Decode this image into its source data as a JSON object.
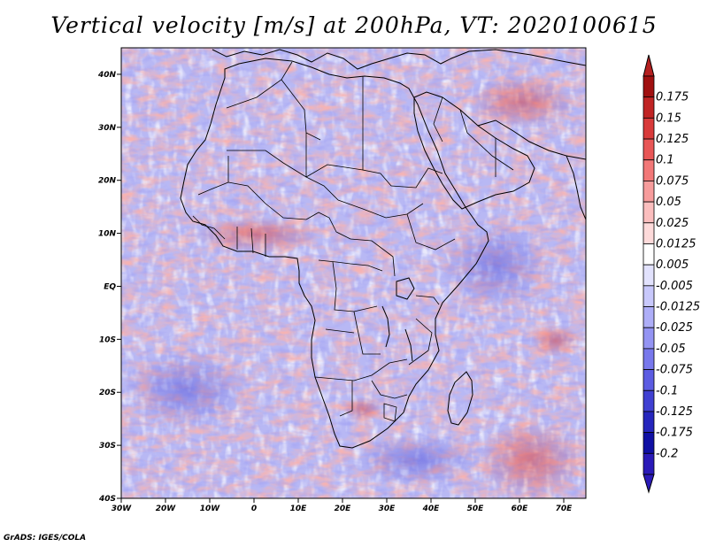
{
  "title": "Vertical velocity [m/s] at 200hPa, VT: 2020100615",
  "credit": "GrADS: IGES/COLA",
  "map": {
    "variable": "vertical velocity",
    "units": "m/s",
    "level": "200hPa",
    "valid_time": "2020100615",
    "region": "Africa",
    "lon_range": [
      -30,
      75
    ],
    "lat_range": [
      -40,
      45
    ],
    "lat_labels": [
      {
        "value": 40,
        "text": "40N"
      },
      {
        "value": 30,
        "text": "30N"
      },
      {
        "value": 20,
        "text": "20N"
      },
      {
        "value": 10,
        "text": "10N"
      },
      {
        "value": 0,
        "text": "EQ"
      },
      {
        "value": -10,
        "text": "10S"
      },
      {
        "value": -20,
        "text": "20S"
      },
      {
        "value": -30,
        "text": "30S"
      },
      {
        "value": -40,
        "text": "40S"
      }
    ],
    "lon_labels": [
      {
        "value": -30,
        "text": "30W"
      },
      {
        "value": -20,
        "text": "20W"
      },
      {
        "value": -10,
        "text": "10W"
      },
      {
        "value": 0,
        "text": "0"
      },
      {
        "value": 10,
        "text": "10E"
      },
      {
        "value": 20,
        "text": "20E"
      },
      {
        "value": 30,
        "text": "30E"
      },
      {
        "value": 40,
        "text": "40E"
      },
      {
        "value": 50,
        "text": "50E"
      },
      {
        "value": 60,
        "text": "60E"
      },
      {
        "value": 70,
        "text": "70E"
      }
    ]
  },
  "colorbar": {
    "levels": [
      {
        "label": "0.175",
        "color": "#a01010"
      },
      {
        "label": "0.15",
        "color": "#c02424"
      },
      {
        "label": "0.125",
        "color": "#d83a3a"
      },
      {
        "label": "0.1",
        "color": "#e85656"
      },
      {
        "label": "0.075",
        "color": "#f27878"
      },
      {
        "label": "0.05",
        "color": "#f79c9c"
      },
      {
        "label": "0.025",
        "color": "#fbbebe"
      },
      {
        "label": "0.0125",
        "color": "#fddada"
      },
      {
        "label": "0.005",
        "color": "#ffffff"
      },
      {
        "label": "-0.005",
        "color": "#e2e2fd"
      },
      {
        "label": "-0.0125",
        "color": "#c8c8fb"
      },
      {
        "label": "-0.025",
        "color": "#aeaef8"
      },
      {
        "label": "-0.05",
        "color": "#9494f3"
      },
      {
        "label": "-0.075",
        "color": "#7878ec"
      },
      {
        "label": "-0.1",
        "color": "#5c5ce2"
      },
      {
        "label": "-0.125",
        "color": "#4040d2"
      },
      {
        "label": "-0.175",
        "color": "#2626bd"
      },
      {
        "label": "-0.2",
        "color": "#1010a4"
      }
    ],
    "top_color": "#b52020",
    "bottom_color": "#2a1ab8"
  }
}
